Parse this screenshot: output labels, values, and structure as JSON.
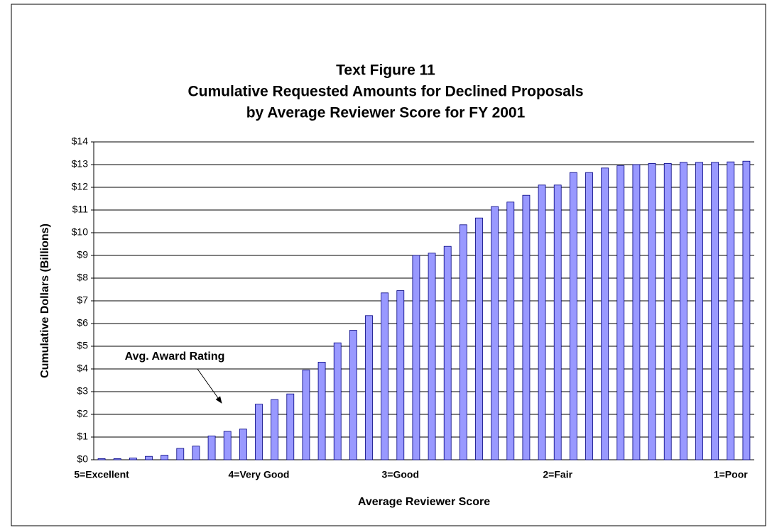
{
  "chart_data": {
    "type": "bar",
    "title": "Text Figure 11",
    "subtitle": [
      "Cumulative Requested Amounts for Declined Proposals",
      "by Average Reviewer Score for FY 2001"
    ],
    "x_label": "Average Reviewer Score",
    "y_label": "Cumulative Dollars (Billions)",
    "annotation": "Avg. Award Rating",
    "categories": [
      "5=Excellent",
      null,
      null,
      null,
      null,
      null,
      null,
      null,
      null,
      null,
      "4=Very Good",
      null,
      null,
      null,
      null,
      null,
      null,
      null,
      null,
      "3=Good",
      null,
      null,
      null,
      null,
      null,
      null,
      null,
      null,
      null,
      "2=Fair",
      null,
      null,
      null,
      null,
      null,
      null,
      null,
      null,
      null,
      null,
      "1=Poor",
      null
    ],
    "values": [
      0.05,
      0.05,
      0.08,
      0.15,
      0.2,
      0.5,
      0.6,
      1.05,
      1.25,
      1.35,
      2.45,
      2.65,
      2.9,
      3.95,
      4.3,
      5.15,
      5.7,
      6.35,
      7.35,
      7.45,
      9.0,
      9.1,
      9.4,
      10.35,
      10.65,
      11.15,
      11.35,
      11.65,
      12.1,
      12.1,
      12.65,
      12.65,
      12.85,
      12.95,
      13.0,
      13.05,
      13.05,
      13.1,
      13.1,
      13.1,
      13.12,
      13.15
    ],
    "color": "#9999ff",
    "ylim": [
      0,
      14
    ],
    "yticks": [
      {
        "value": 0,
        "label": "$0"
      },
      {
        "value": 1,
        "label": "$1"
      },
      {
        "value": 2,
        "label": "$2"
      },
      {
        "value": 3,
        "label": "$3"
      },
      {
        "value": 4,
        "label": "$4"
      },
      {
        "value": 5,
        "label": "$5"
      },
      {
        "value": 6,
        "label": "$6"
      },
      {
        "value": 7,
        "label": "$7"
      },
      {
        "value": 8,
        "label": "$8"
      },
      {
        "value": 9,
        "label": "$9"
      },
      {
        "value": 10,
        "label": "$10"
      },
      {
        "value": 11,
        "label": "$11"
      },
      {
        "value": 12,
        "label": "$12"
      },
      {
        "value": 13,
        "label": "$13"
      },
      {
        "value": 14,
        "label": "$14"
      }
    ],
    "grid": true
  }
}
